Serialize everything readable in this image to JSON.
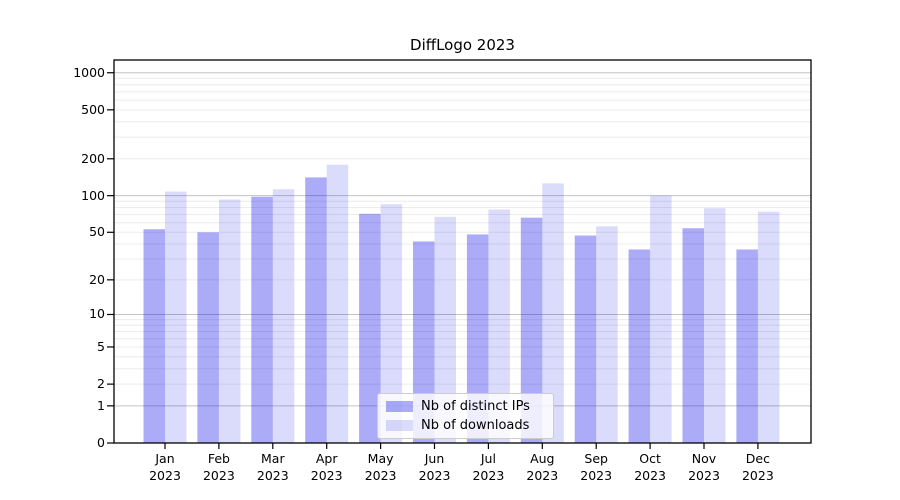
{
  "chart_data": {
    "type": "bar",
    "title": "DiffLogo 2023",
    "categories": [
      "Jan 2023",
      "Feb 2023",
      "Mar 2023",
      "Apr 2023",
      "May 2023",
      "Jun 2023",
      "Jul 2023",
      "Aug 2023",
      "Sep 2023",
      "Oct 2023",
      "Nov 2023",
      "Dec 2023"
    ],
    "series": [
      {
        "name": "Nb of distinct IPs",
        "color": "rgba(0,0,230,0.33)",
        "values": [
          53,
          50,
          98,
          141,
          71,
          42,
          48,
          66,
          47,
          36,
          54,
          36
        ]
      },
      {
        "name": "Nb of downloads",
        "color": "rgba(0,0,230,0.14)",
        "values": [
          108,
          93,
          113,
          179,
          85,
          67,
          77,
          126,
          56,
          100,
          79,
          74
        ]
      }
    ],
    "yscale": "log1p",
    "yticks": [
      0,
      1,
      2,
      5,
      10,
      20,
      50,
      100,
      200,
      500,
      1000
    ],
    "ylim": [
      0,
      1280
    ],
    "grid": true,
    "legend_position": "lower center"
  },
  "colors": {
    "background": "#ffffff",
    "axis": "#000000",
    "major_gridline": "#c3c3c3",
    "minor_gridline": "#ececec",
    "bar_distinct_ips": "rgba(0,0,230,0.33)",
    "bar_downloads": "rgba(0,0,230,0.14)",
    "legend_border": "#cccccc"
  }
}
